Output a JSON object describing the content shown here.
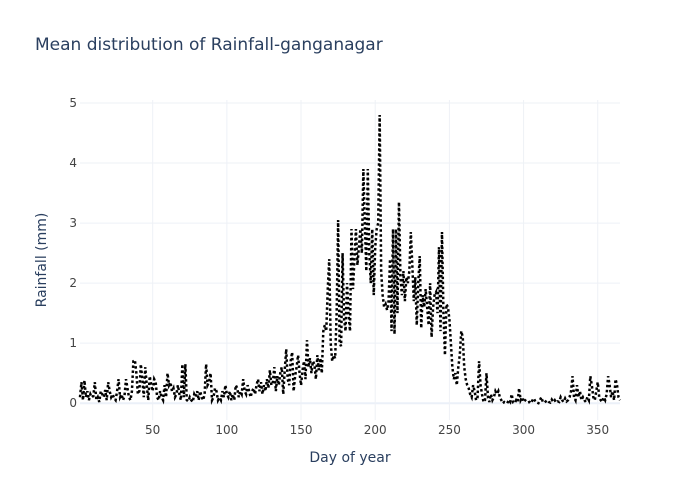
{
  "chart_data": {
    "type": "line",
    "title": "Mean distribution of Rainfall-ganganagar",
    "x_label": "Day of year",
    "y_label": "Rainfall (mm)",
    "color": "#000000",
    "dash": "dot",
    "grid": true,
    "xlim": [
      1,
      365
    ],
    "ylim": [
      -0.28,
      5.05
    ],
    "xticks": [
      50,
      100,
      150,
      200,
      250,
      300,
      350
    ],
    "yticks": [
      0,
      1,
      2,
      3,
      4,
      5
    ],
    "x": [
      1,
      2,
      3,
      4,
      5,
      6,
      7,
      8,
      9,
      10,
      11,
      12,
      13,
      14,
      15,
      16,
      17,
      18,
      19,
      20,
      21,
      22,
      23,
      24,
      25,
      26,
      27,
      28,
      29,
      30,
      31,
      32,
      33,
      34,
      35,
      36,
      37,
      38,
      39,
      40,
      41,
      42,
      43,
      44,
      45,
      46,
      47,
      48,
      49,
      50,
      51,
      52,
      53,
      54,
      55,
      56,
      57,
      58,
      59,
      60,
      61,
      62,
      63,
      64,
      65,
      66,
      67,
      68,
      69,
      70,
      71,
      72,
      73,
      74,
      75,
      76,
      77,
      78,
      79,
      80,
      81,
      82,
      83,
      84,
      85,
      86,
      87,
      88,
      89,
      90,
      91,
      92,
      93,
      94,
      95,
      96,
      97,
      98,
      99,
      100,
      101,
      102,
      103,
      104,
      105,
      106,
      107,
      108,
      109,
      110,
      111,
      112,
      113,
      114,
      115,
      116,
      117,
      118,
      119,
      120,
      121,
      122,
      123,
      124,
      125,
      126,
      127,
      128,
      129,
      130,
      131,
      132,
      133,
      134,
      135,
      136,
      137,
      138,
      139,
      140,
      141,
      142,
      143,
      144,
      145,
      146,
      147,
      148,
      149,
      150,
      151,
      152,
      153,
      154,
      155,
      156,
      157,
      158,
      159,
      160,
      161,
      162,
      163,
      164,
      165,
      166,
      167,
      168,
      169,
      170,
      171,
      172,
      173,
      174,
      175,
      176,
      177,
      178,
      179,
      180,
      181,
      182,
      183,
      184,
      185,
      186,
      187,
      188,
      189,
      190,
      191,
      192,
      193,
      194,
      195,
      196,
      197,
      198,
      199,
      200,
      201,
      202,
      203,
      204,
      205,
      206,
      207,
      208,
      209,
      210,
      211,
      212,
      213,
      214,
      215,
      216,
      217,
      218,
      219,
      220,
      221,
      222,
      223,
      224,
      225,
      226,
      227,
      228,
      229,
      230,
      231,
      232,
      233,
      234,
      235,
      236,
      237,
      238,
      239,
      240,
      241,
      242,
      243,
      244,
      245,
      246,
      247,
      248,
      249,
      250,
      251,
      252,
      253,
      254,
      255,
      256,
      257,
      258,
      259,
      260,
      261,
      262,
      263,
      264,
      265,
      266,
      267,
      268,
      269,
      270,
      271,
      272,
      273,
      274,
      275,
      276,
      277,
      278,
      279,
      280,
      281,
      282,
      283,
      284,
      285,
      286,
      287,
      288,
      289,
      290,
      291,
      292,
      293,
      294,
      295,
      296,
      297,
      298,
      299,
      300,
      301,
      302,
      303,
      304,
      305,
      306,
      307,
      308,
      309,
      310,
      311,
      312,
      313,
      314,
      315,
      316,
      317,
      318,
      319,
      320,
      321,
      322,
      323,
      324,
      325,
      326,
      327,
      328,
      329,
      330,
      331,
      332,
      333,
      334,
      335,
      336,
      337,
      338,
      339,
      340,
      341,
      342,
      343,
      344,
      345,
      346,
      347,
      348,
      349,
      350,
      351,
      352,
      353,
      354,
      355,
      356,
      357,
      358,
      359,
      360,
      361,
      362,
      363,
      364,
      365
    ],
    "values": [
      0.1,
      0.35,
      0.05,
      0.38,
      0.1,
      0.2,
      0.05,
      0.15,
      0.1,
      0.12,
      0.35,
      0.05,
      0.1,
      0.02,
      0.2,
      0.15,
      0.1,
      0.22,
      0.05,
      0.35,
      0.2,
      0.1,
      0.15,
      0.08,
      0.05,
      0.2,
      0.4,
      0.1,
      0.15,
      0.05,
      0.12,
      0.4,
      0.25,
      0.1,
      0.05,
      0.2,
      0.7,
      0.72,
      0.5,
      0.15,
      0.2,
      0.65,
      0.4,
      0.1,
      0.6,
      0.3,
      0.05,
      0.45,
      0.3,
      0.2,
      0.4,
      0.35,
      0.1,
      0.05,
      0.2,
      0.1,
      0.05,
      0.3,
      0.1,
      0.5,
      0.3,
      0.35,
      0.2,
      0.25,
      0.1,
      0.15,
      0.3,
      0.15,
      0.05,
      0.65,
      0.1,
      0.65,
      0.05,
      0.03,
      0.1,
      0.05,
      0.02,
      0.15,
      0.1,
      0.2,
      0.05,
      0.2,
      0.1,
      0.05,
      0.15,
      0.65,
      0.3,
      0.35,
      0.5,
      0.05,
      0.1,
      0.25,
      0.2,
      0.05,
      0.1,
      0.05,
      0.2,
      0.1,
      0.3,
      0.15,
      0.1,
      0.2,
      0.05,
      0.15,
      0.05,
      0.3,
      0.25,
      0.1,
      0.2,
      0.15,
      0.4,
      0.2,
      0.15,
      0.3,
      0.2,
      0.1,
      0.2,
      0.25,
      0.15,
      0.3,
      0.4,
      0.2,
      0.35,
      0.15,
      0.3,
      0.2,
      0.4,
      0.25,
      0.55,
      0.3,
      0.35,
      0.6,
      0.2,
      0.45,
      0.3,
      0.5,
      0.6,
      0.15,
      0.55,
      0.9,
      0.4,
      0.3,
      0.7,
      0.85,
      0.2,
      0.45,
      0.6,
      0.8,
      0.5,
      0.3,
      0.55,
      0.7,
      0.4,
      1.05,
      0.6,
      0.75,
      0.5,
      0.7,
      0.65,
      0.4,
      0.8,
      0.55,
      0.75,
      0.5,
      1.2,
      1.3,
      1.2,
      1.9,
      2.4,
      1.0,
      0.7,
      0.8,
      0.75,
      1.5,
      3.05,
      1.0,
      0.95,
      2.5,
      1.4,
      1.2,
      2.0,
      1.5,
      1.2,
      2.9,
      1.9,
      2.4,
      2.9,
      2.3,
      2.6,
      2.9,
      2.5,
      3.9,
      3.0,
      2.2,
      3.9,
      2.5,
      2.0,
      2.9,
      1.8,
      2.6,
      2.9,
      3.0,
      4.8,
      2.2,
      1.8,
      1.6,
      1.65,
      1.55,
      1.7,
      2.4,
      1.2,
      2.9,
      1.15,
      2.9,
      1.5,
      3.35,
      2.1,
      1.8,
      2.2,
      1.7,
      2.1,
      2.0,
      2.2,
      2.85,
      2.3,
      1.7,
      2.1,
      1.3,
      2.0,
      2.45,
      1.25,
      1.8,
      1.6,
      1.9,
      1.6,
      1.3,
      2.0,
      1.1,
      1.6,
      1.8,
      1.85,
      1.5,
      2.6,
      1.2,
      2.85,
      1.5,
      0.8,
      1.65,
      1.6,
      1.4,
      1.0,
      0.6,
      0.4,
      0.5,
      0.3,
      0.6,
      0.8,
      1.2,
      1.1,
      0.6,
      0.4,
      0.3,
      0.25,
      0.15,
      0.1,
      0.3,
      0.2,
      0.05,
      0.1,
      0.7,
      0.3,
      0.15,
      0.02,
      0.05,
      0.5,
      0.1,
      0.02,
      0.15,
      0.05,
      0.1,
      0.2,
      0.15,
      0.2,
      0.1,
      0.05,
      0,
      0.02,
      0.01,
      0,
      0.05,
      0.02,
      0.15,
      0.01,
      0,
      0.05,
      0.02,
      0.25,
      0.05,
      0.1,
      0.02,
      0.05,
      0.03,
      0.01,
      0.02,
      0,
      0.05,
      0.08,
      0.02,
      0.01,
      0,
      0.05,
      0.1,
      0.02,
      0.01,
      0.03,
      0.05,
      0.02,
      0.01,
      0.06,
      0.02,
      0.05,
      0.01,
      0.03,
      0.02,
      0.1,
      0.05,
      0.02,
      0.08,
      0.03,
      0.05,
      0.1,
      0.2,
      0.45,
      0.1,
      0.05,
      0.3,
      0.1,
      0.2,
      0.05,
      0.1,
      0.05,
      0.02,
      0.1,
      0.05,
      0.45,
      0.3,
      0.1,
      0.05,
      0.2,
      0.35,
      0.1,
      0.05,
      0.02,
      0.1,
      0.05,
      0.15,
      0.45,
      0.3,
      0.1,
      0.2,
      0.05,
      0.4,
      0.3,
      0.1,
      0.05
    ]
  }
}
